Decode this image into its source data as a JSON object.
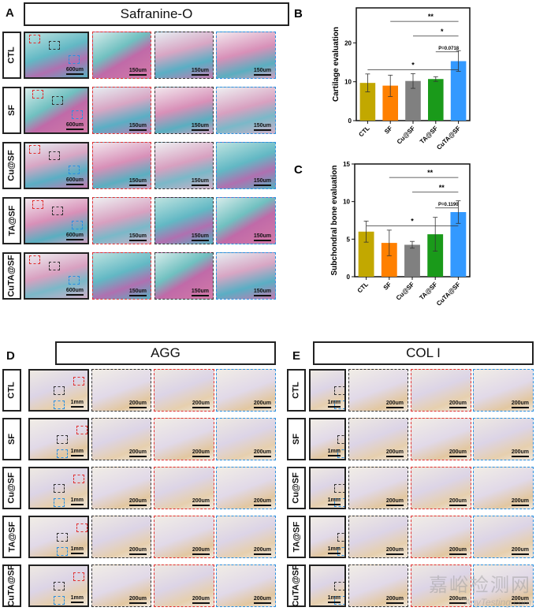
{
  "panelA": {
    "letter": "A",
    "title": "Safranine-O",
    "rows": [
      "CTL",
      "SF",
      "Cu@SF",
      "TA@SF",
      "CuTA@SF"
    ],
    "scale_main": "600um",
    "scale_zoom": "150um",
    "zoom_order": [
      "red",
      "black",
      "blue"
    ]
  },
  "panelD": {
    "letter": "D",
    "title": "AGG",
    "rows": [
      "CTL",
      "SF",
      "Cu@SF",
      "TA@SF",
      "CuTA@SF"
    ],
    "scale_main": "1mm",
    "scale_zoom": "200um",
    "zoom_order": [
      "black",
      "red",
      "blue"
    ]
  },
  "panelE": {
    "letter": "E",
    "title": "COL I",
    "rows": [
      "CTL",
      "SF",
      "Cu@SF",
      "TA@SF",
      "CuTA@SF"
    ],
    "scale_main": "1mm",
    "scale_zoom": "200um",
    "zoom_order": [
      "black",
      "red",
      "blue"
    ]
  },
  "watermark": {
    "line1": "嘉峪检测网",
    "line2": "AnyTesting.com"
  },
  "chart_data": [
    {
      "letter": "B",
      "type": "bar",
      "ylabel": "Cartilage evaluation",
      "categories": [
        "CTL",
        "SF",
        "Cu@SF",
        "TA@SF",
        "CuTA@SF"
      ],
      "values": [
        9.7,
        9.0,
        10.2,
        10.7,
        15.3
      ],
      "error_low": [
        7.4,
        6.2,
        8.3,
        10.1,
        12.7
      ],
      "error_high": [
        12.0,
        11.7,
        12.1,
        11.3,
        18.0
      ],
      "colors": [
        "#c2a800",
        "#ff8000",
        "#808080",
        "#1a9a1a",
        "#3399ff"
      ],
      "ylim": [
        0,
        29
      ],
      "yticks": [
        0,
        10,
        20
      ],
      "significance": [
        {
          "from": 1,
          "to": 4,
          "label": "**"
        },
        {
          "from": 2,
          "to": 4,
          "label": "*"
        },
        {
          "from": 3,
          "to": 4,
          "label": "P=0.0718"
        },
        {
          "from": 0,
          "to": 4,
          "label": "*"
        }
      ]
    },
    {
      "letter": "C",
      "type": "bar",
      "ylabel": "Subchondral bone evaluation",
      "categories": [
        "CTL",
        "SF",
        "Cu@SF",
        "TA@SF",
        "CuTA@SF"
      ],
      "values": [
        6.0,
        4.5,
        4.25,
        5.65,
        8.6
      ],
      "error_low": [
        4.6,
        2.8,
        3.8,
        3.4,
        7.1
      ],
      "error_high": [
        7.4,
        6.2,
        4.7,
        7.9,
        10.1
      ],
      "colors": [
        "#c2a800",
        "#ff8000",
        "#808080",
        "#1a9a1a",
        "#3399ff"
      ],
      "ylim": [
        0,
        15
      ],
      "yticks": [
        0,
        5,
        10,
        15
      ],
      "significance": [
        {
          "from": 1,
          "to": 4,
          "label": "**"
        },
        {
          "from": 2,
          "to": 4,
          "label": "**"
        },
        {
          "from": 3,
          "to": 4,
          "label": "P=0.1190"
        },
        {
          "from": 0,
          "to": 4,
          "label": "*"
        }
      ]
    }
  ]
}
